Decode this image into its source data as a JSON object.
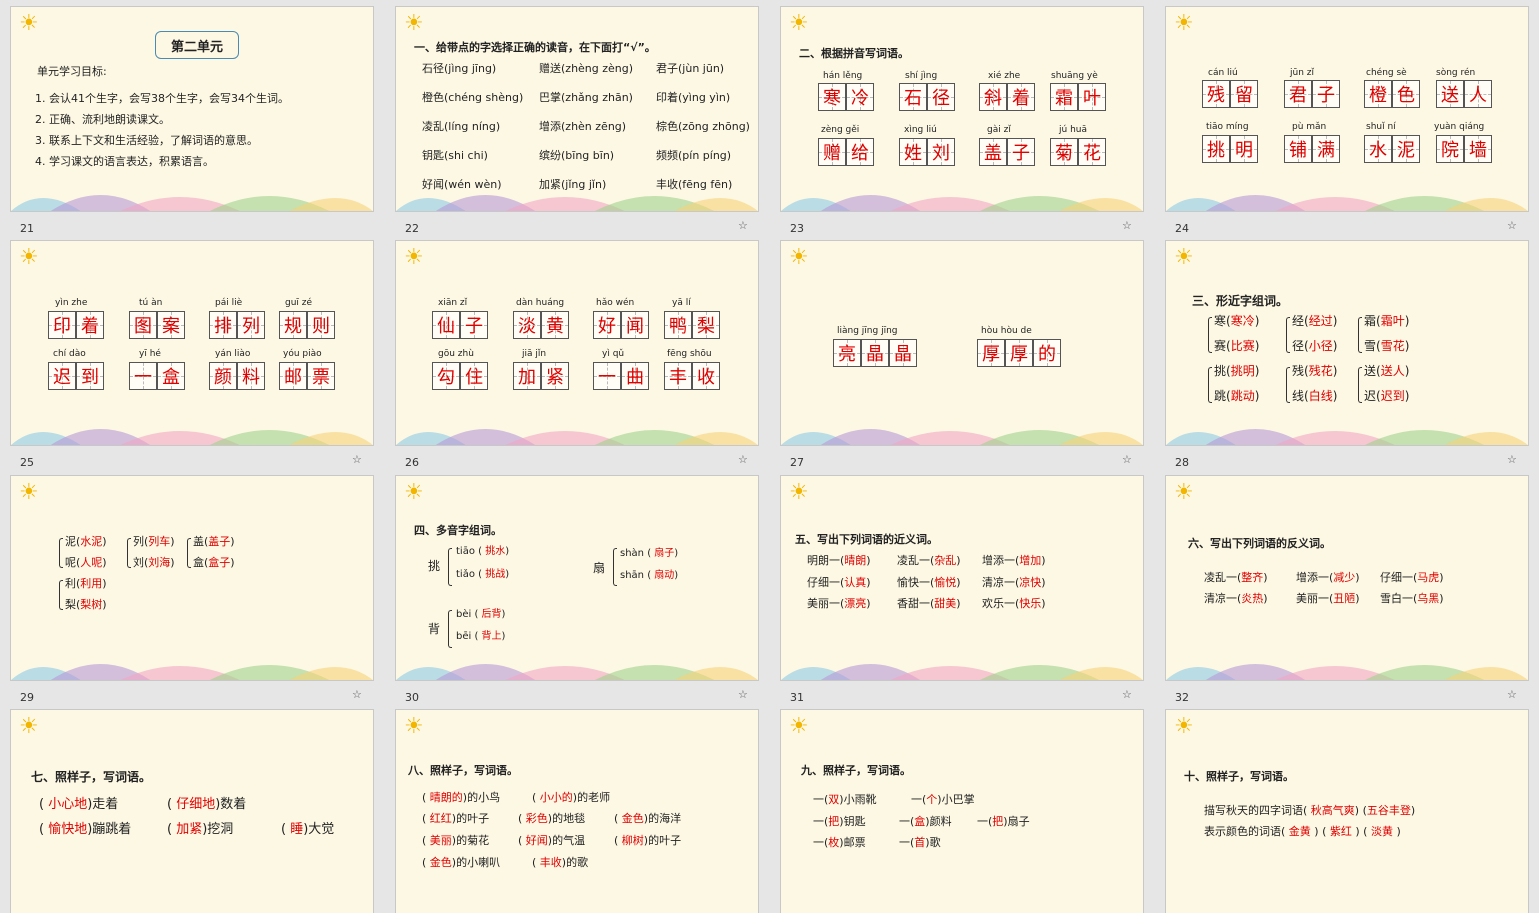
{
  "slides": [
    {
      "num": "21"
    },
    {
      "num": "22"
    },
    {
      "num": "23"
    },
    {
      "num": "24"
    },
    {
      "num": "25"
    },
    {
      "num": "26"
    },
    {
      "num": "27"
    },
    {
      "num": "28"
    },
    {
      "num": "29"
    },
    {
      "num": "30"
    },
    {
      "num": "31"
    },
    {
      "num": "32"
    },
    {
      "num": ""
    },
    {
      "num": ""
    },
    {
      "num": ""
    },
    {
      "num": ""
    }
  ],
  "s21": {
    "title": "第二单元",
    "goals_label": "单元学习目标:",
    "goals": [
      "1. 会认41个生字，会写38个生字，会写34个生词。",
      "2. 正确、流利地朗读课文。",
      "3. 联系上下文和生活经验，了解词语的意思。",
      "4. 学习课文的语言表达，积累语言。"
    ]
  },
  "s22": {
    "heading": "一、给带点的字选择正确的读音，在下面打“√”。",
    "rows": [
      [
        "石径(jìng  jīng)",
        "赠送(zhèng  zèng)",
        "君子(jùn  jūn)"
      ],
      [
        "橙色(chéng  shèng)",
        "巴掌(zhǎng  zhān)",
        "印着(yìng  yìn)"
      ],
      [
        "凌乱(líng  níng)",
        "增添(zhèn  zēng)",
        "棕色(zōng  zhōng)"
      ],
      [
        "钥匙(shi  chi)",
        "缤纷(bīng  bīn)",
        "频频(pín  píng)"
      ],
      [
        "好闻(wén  wèn)",
        "加紧(jǐng  jǐn)",
        "丰收(fēng  fēn)"
      ]
    ]
  },
  "s23": {
    "heading": "二、根据拼音写词语。",
    "words": [
      {
        "py": "hán  lěng",
        "chars": [
          "寒",
          "冷"
        ]
      },
      {
        "py": "shí  jìng",
        "chars": [
          "石",
          "径"
        ]
      },
      {
        "py": "xié  zhe",
        "chars": [
          "斜",
          "着"
        ]
      },
      {
        "py": "shuāng yè",
        "chars": [
          "霜",
          "叶"
        ]
      },
      {
        "py": "zèng  gěi",
        "chars": [
          "赠",
          "给"
        ]
      },
      {
        "py": "xìng  liú",
        "chars": [
          "姓",
          "刘"
        ]
      },
      {
        "py": "gài  zǐ",
        "chars": [
          "盖",
          "子"
        ]
      },
      {
        "py": "jú  huā",
        "chars": [
          "菊",
          "花"
        ]
      }
    ]
  },
  "s24": {
    "words": [
      {
        "py": "cán  liú",
        "chars": [
          "残",
          "留"
        ]
      },
      {
        "py": "jūn  zǐ",
        "chars": [
          "君",
          "子"
        ]
      },
      {
        "py": "chéng sè",
        "chars": [
          "橙",
          "色"
        ]
      },
      {
        "py": "sòng  rén",
        "chars": [
          "送",
          "人"
        ]
      },
      {
        "py": "tiāo míng",
        "chars": [
          "挑",
          "明"
        ]
      },
      {
        "py": "pù  mǎn",
        "chars": [
          "铺",
          "满"
        ]
      },
      {
        "py": "shuǐ  ní",
        "chars": [
          "水",
          "泥"
        ]
      },
      {
        "py": "yuàn  qiáng",
        "chars": [
          "院",
          "墙"
        ]
      }
    ]
  },
  "s25": {
    "words": [
      {
        "py": "yìn  zhe",
        "chars": [
          "印",
          "着"
        ]
      },
      {
        "py": "tú  àn",
        "chars": [
          "图",
          "案"
        ]
      },
      {
        "py": "pái  liè",
        "chars": [
          "排",
          "列"
        ]
      },
      {
        "py": "guī  zé",
        "chars": [
          "规",
          "则"
        ]
      },
      {
        "py": "chí  dào",
        "chars": [
          "迟",
          "到"
        ]
      },
      {
        "py": "yī  hé",
        "chars": [
          "一",
          "盒"
        ]
      },
      {
        "py": "yán  liào",
        "chars": [
          "颜",
          "料"
        ]
      },
      {
        "py": "yóu  piào",
        "chars": [
          "邮",
          "票"
        ]
      }
    ]
  },
  "s26": {
    "words": [
      {
        "py": "xiān  zǐ",
        "chars": [
          "仙",
          "子"
        ]
      },
      {
        "py": "dàn  huáng",
        "chars": [
          "淡",
          "黄"
        ]
      },
      {
        "py": "hǎo  wén",
        "chars": [
          "好",
          "闻"
        ]
      },
      {
        "py": "yā  lí",
        "chars": [
          "鸭",
          "梨"
        ]
      },
      {
        "py": "gōu  zhù",
        "chars": [
          "勾",
          "住"
        ]
      },
      {
        "py": "jiā  jǐn",
        "chars": [
          "加",
          "紧"
        ]
      },
      {
        "py": "yì  qǔ",
        "chars": [
          "一",
          "曲"
        ]
      },
      {
        "py": "fēng  shōu",
        "chars": [
          "丰",
          "收"
        ]
      }
    ]
  },
  "s27": {
    "words": [
      {
        "py": "liàng  jīng  jīng",
        "chars": [
          "亮",
          "晶",
          "晶"
        ]
      },
      {
        "py": "hòu  hòu  de",
        "chars": [
          "厚",
          "厚",
          "的"
        ]
      }
    ]
  },
  "s28": {
    "heading": "三、形近字组词。",
    "groups": [
      [
        {
          "c": "寒",
          "a": "寒冷"
        },
        {
          "c": "赛",
          "a": "比赛"
        }
      ],
      [
        {
          "c": "经",
          "a": "经过"
        },
        {
          "c": "径",
          "a": "小径"
        }
      ],
      [
        {
          "c": "霜",
          "a": "霜叶"
        },
        {
          "c": "雪",
          "a": "雪花"
        }
      ],
      [
        {
          "c": "挑",
          "a": "挑明"
        },
        {
          "c": "跳",
          "a": "跳动"
        }
      ],
      [
        {
          "c": "残",
          "a": "残花"
        },
        {
          "c": "线",
          "a": "白线"
        }
      ],
      [
        {
          "c": "送",
          "a": "送人"
        },
        {
          "c": "迟",
          "a": "迟到"
        }
      ]
    ]
  },
  "s29": {
    "groups": [
      [
        {
          "c": "泥",
          "a": "水泥"
        },
        {
          "c": "呢",
          "a": "人呢"
        }
      ],
      [
        {
          "c": "列",
          "a": "列车"
        },
        {
          "c": "刘",
          "a": "刘海"
        }
      ],
      [
        {
          "c": "盖",
          "a": "盖子"
        },
        {
          "c": "盒",
          "a": "盒子"
        }
      ],
      [
        {
          "c": "利",
          "a": "利用"
        },
        {
          "c": "梨",
          "a": "梨树"
        }
      ]
    ]
  },
  "s30": {
    "heading": "四、多音字组词。",
    "items": [
      {
        "c": "挑",
        "r": [
          {
            "p": "tiāo",
            "a": "挑水"
          },
          {
            "p": "tiǎo",
            "a": "挑战"
          }
        ]
      },
      {
        "c": "扇",
        "r": [
          {
            "p": "shàn",
            "a": "扇子"
          },
          {
            "p": "shān",
            "a": "扇动"
          }
        ]
      },
      {
        "c": "背",
        "r": [
          {
            "p": "bèi",
            "a": "后背"
          },
          {
            "p": "bēi",
            "a": "背上"
          }
        ]
      }
    ]
  },
  "s31": {
    "heading": "五、写出下列词语的近义词。",
    "rows": [
      [
        {
          "w": "明朗一",
          "a": "晴朗"
        },
        {
          "w": "凌乱一",
          "a": "杂乱"
        },
        {
          "w": "增添一",
          "a": "增加"
        }
      ],
      [
        {
          "w": "仔细一",
          "a": "认真"
        },
        {
          "w": "愉快一",
          "a": "愉悦"
        },
        {
          "w": "清凉一",
          "a": "凉快"
        }
      ],
      [
        {
          "w": "美丽一",
          "a": "漂亮"
        },
        {
          "w": "香甜一",
          "a": "甜美"
        },
        {
          "w": "欢乐一",
          "a": "快乐"
        }
      ]
    ]
  },
  "s32": {
    "heading": "六、写出下列词语的反义词。",
    "rows": [
      [
        {
          "w": "凌乱一",
          "a": "整齐"
        },
        {
          "w": "增添一",
          "a": "减少"
        },
        {
          "w": "仔细一",
          "a": "马虎"
        }
      ],
      [
        {
          "w": "清凉一",
          "a": "炎热"
        },
        {
          "w": "美丽一",
          "a": "丑陋"
        },
        {
          "w": "雪白一",
          "a": "乌黑"
        }
      ]
    ]
  },
  "s33": {
    "heading": "七、照样子，写词语。",
    "l1a": "小心地",
    "l1b": ")走着",
    "l1c": "仔细地",
    "l1d": ")数着",
    "l2a": "愉快地",
    "l2b": ")蹦跳着",
    "l2c": "加紧",
    "l2d": ")挖洞",
    "l2e": "睡",
    "l2f": ")大觉"
  },
  "s34": {
    "heading": "八、照样子，写词语。",
    "rows": [
      [
        {
          "a": "晴朗的",
          "w": ")的小鸟"
        },
        {
          "a": "小小的",
          "w": ")的老师"
        }
      ],
      [
        {
          "a": "红红",
          "w": ")的叶子"
        },
        {
          "a": "彩色",
          "w": ")的地毯"
        },
        {
          "a": "金色",
          "w": ")的海洋"
        }
      ],
      [
        {
          "a": "美丽",
          "w": ")的菊花"
        },
        {
          "a": "好闻",
          "w": ")的气温"
        },
        {
          "a": "柳树",
          "w": ")的叶子"
        }
      ],
      [
        {
          "a": "金色",
          "w": ")的小喇叭"
        },
        {
          "a": "丰收",
          "w": ")的歌"
        }
      ]
    ]
  },
  "s35": {
    "heading": "九、照样子，写词语。",
    "items": [
      {
        "a": "双",
        "w": "小雨靴"
      },
      {
        "a": "个",
        "w": "小巴掌"
      },
      {
        "a": "把",
        "w": "钥匙"
      },
      {
        "a": "盒",
        "w": "颜料"
      },
      {
        "a": "把",
        "w": "扇子"
      },
      {
        "a": "枚",
        "w": "邮票"
      },
      {
        "a": "首",
        "w": "歌"
      }
    ]
  },
  "s36": {
    "heading": "十、照样子，写词语。",
    "l1": "描写秋天的四字词语(",
    "a1": "秋高气爽",
    "a2": "五谷丰登",
    "l2": "表示颜色的词语(",
    "b1": "金黄",
    "b2": "紫红",
    "b3": "淡黄"
  },
  "colors": {
    "bg": "#fdf8e4",
    "accent": "#e00000",
    "frame": "#4a8bb3"
  }
}
